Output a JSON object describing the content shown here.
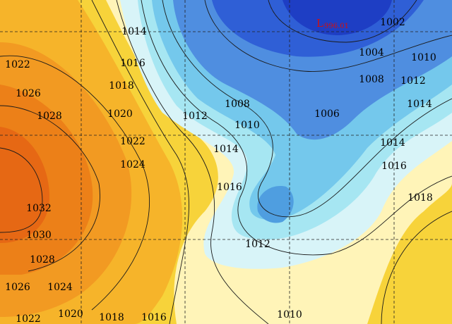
{
  "map": {
    "low_center": {
      "letter": "L",
      "value": "996.01"
    },
    "isobar_labels": [
      "1014",
      "1016",
      "1018",
      "1020",
      "1022",
      "1024",
      "1022",
      "1026",
      "1028",
      "1032",
      "1030",
      "1028",
      "1026",
      "1024",
      "1022",
      "1020",
      "1018",
      "1016",
      "1012",
      "1008",
      "1010",
      "1014",
      "1016",
      "1012",
      "1006",
      "1002",
      "1004",
      "1008",
      "1010",
      "1012",
      "1014",
      "1014",
      "1016",
      "1018",
      "1010"
    ]
  }
}
